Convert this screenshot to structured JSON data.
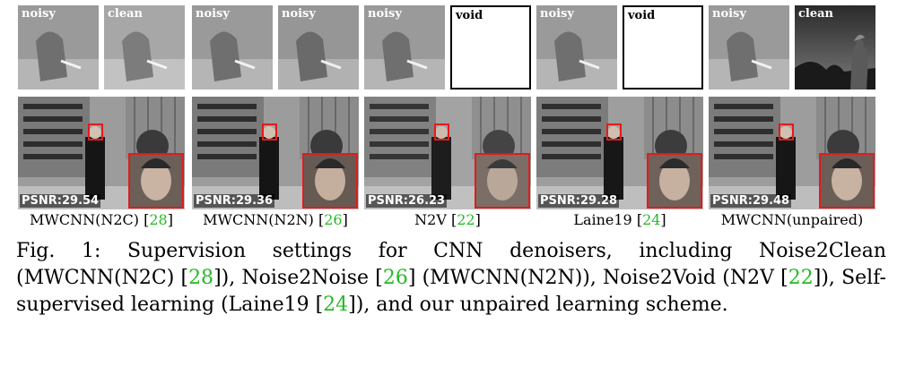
{
  "panels": [
    {
      "top_left_tag": "noisy",
      "top_right_tag": "clean",
      "psnr": "PSNR:29.54",
      "method": "MWCNN(N2C)",
      "cite": "28"
    },
    {
      "top_left_tag": "noisy",
      "top_right_tag": "noisy",
      "psnr": "PSNR:29.36",
      "method": "MWCNN(N2N)",
      "cite": "26"
    },
    {
      "top_left_tag": "noisy",
      "top_right_tag": "void",
      "psnr": "PSNR:26.23",
      "method": "N2V",
      "cite": "22"
    },
    {
      "top_left_tag": "noisy",
      "top_right_tag": "void",
      "psnr": "PSNR:29.28",
      "method": "Laine19",
      "cite": "24"
    },
    {
      "top_left_tag": "noisy",
      "top_right_tag": "clean",
      "psnr": "PSNR:29.48",
      "method": "MWCNN(unpaired)",
      "cite": ""
    }
  ],
  "caption": {
    "label": "Fig. 1:",
    "text_1": "Supervision settings for CNN denoisers, including Noise2Clean (MWCNN(N2C) [",
    "cite_1": "28",
    "text_2": "]), Noise2Noise [",
    "cite_2": "26",
    "text_3": "] (MWCNN(N2N)), Noise2Void (N2V [",
    "cite_3": "22",
    "text_4": "]), Self-supervised learning (Laine19 [",
    "cite_4": "24",
    "text_5": "]), and our unpaired learning scheme."
  },
  "colors": {
    "citation": "#22bb22",
    "crop_box": "#e31b1b"
  }
}
